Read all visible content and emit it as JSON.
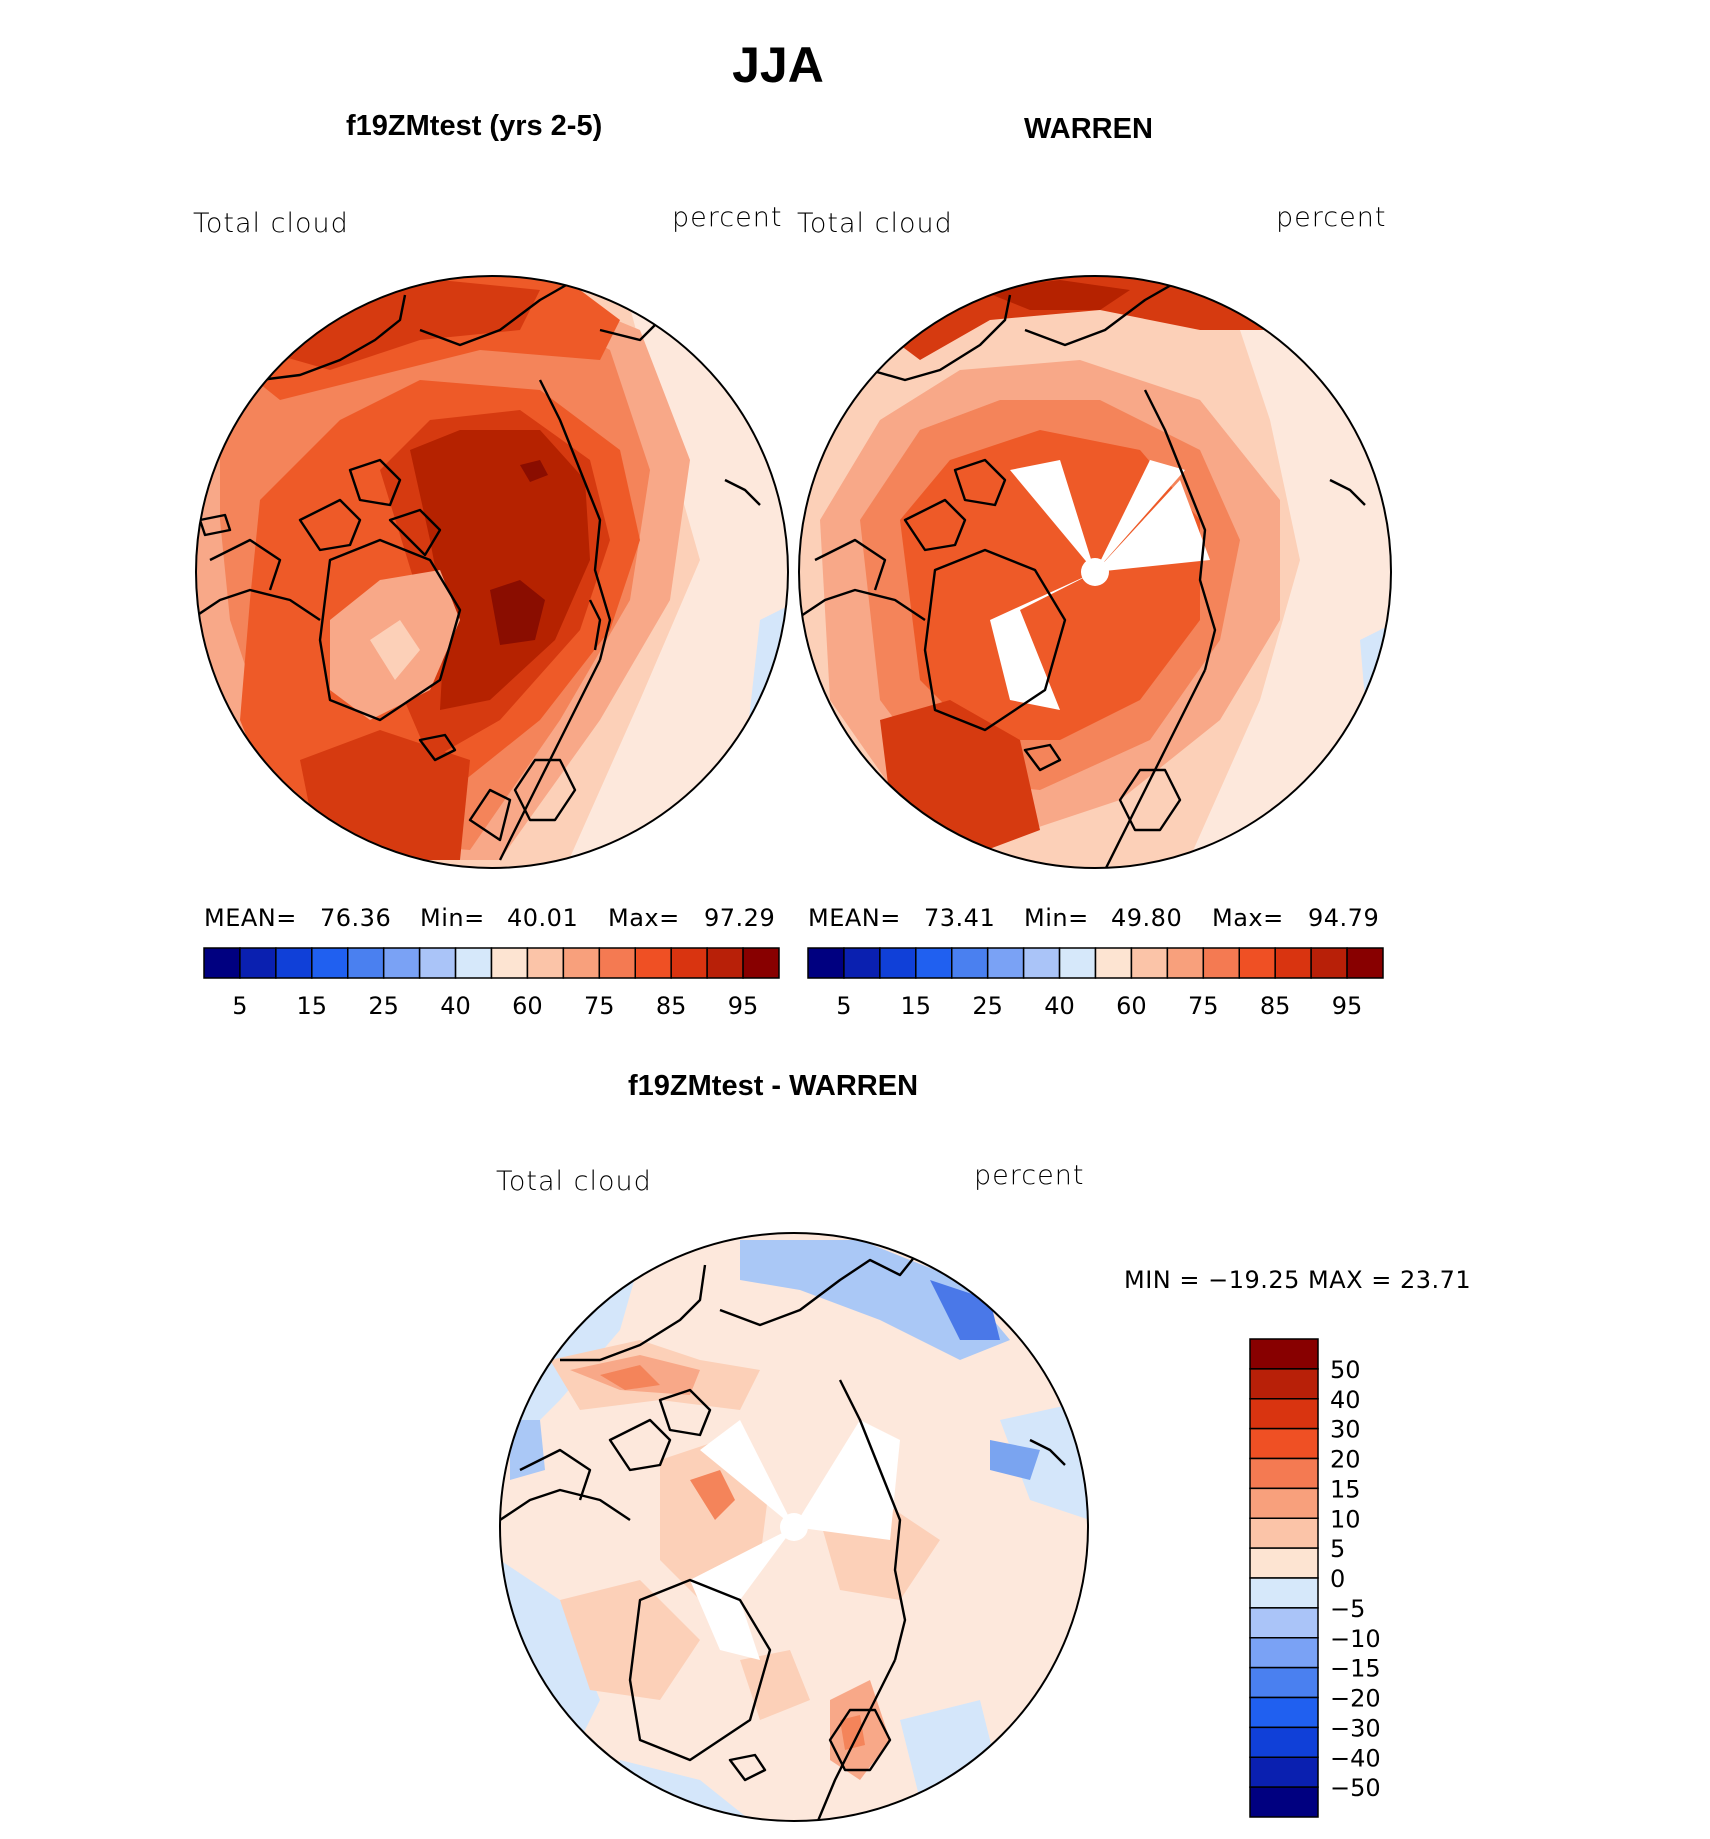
{
  "figure": {
    "title": "JJA"
  },
  "panels": [
    {
      "id": "model",
      "title": "f19ZMtest (yrs 2-5)",
      "variable": "Total cloud",
      "units": "percent",
      "stats": {
        "mean_label": "MEAN=",
        "mean": "76.36",
        "min_label": "Min=",
        "min": "40.01",
        "max_label": "Max=",
        "max": "97.29"
      }
    },
    {
      "id": "obs",
      "title": "WARREN",
      "variable": "Total cloud",
      "units": "percent",
      "stats": {
        "mean_label": "MEAN=",
        "mean": "73.41",
        "min_label": "Min=",
        "min": "49.80",
        "max_label": "Max=",
        "max": "94.79"
      }
    },
    {
      "id": "diff",
      "title": "f19ZMtest - WARREN",
      "variable": "Total cloud",
      "units": "percent",
      "stats_line": "MIN = −19.25 MAX =   23.71"
    }
  ],
  "colorbars": {
    "abs": {
      "colors": [
        "#000080",
        "#0a20b0",
        "#1040d8",
        "#2060f0",
        "#4a80f0",
        "#7aa2f5",
        "#aac4f8",
        "#d6e8fa",
        "#fde4d2",
        "#fbc4a8",
        "#f8a07c",
        "#f47a52",
        "#ef5024",
        "#d93410",
        "#b82008",
        "#880000"
      ],
      "tick_labels": [
        "5",
        "15",
        "25",
        "40",
        "60",
        "75",
        "85",
        "95"
      ]
    },
    "diff": {
      "colors": [
        "#880000",
        "#b82008",
        "#d93410",
        "#ef5024",
        "#f47a52",
        "#f8a07c",
        "#fbc4a8",
        "#fde4d2",
        "#d6e8fa",
        "#aac4f8",
        "#7aa2f5",
        "#4a80f0",
        "#2060f0",
        "#1040d8",
        "#0a20b0",
        "#000080"
      ],
      "tick_labels": [
        "50",
        "40",
        "30",
        "20",
        "15",
        "10",
        "5",
        "0",
        "−5",
        "−10",
        "−15",
        "−20",
        "−30",
        "−40",
        "−50"
      ]
    }
  },
  "map_palette": {
    "darkest_red": "#8a0d00",
    "dark_red": "#b52200",
    "red": "#d63a10",
    "orange_red": "#ee5a28",
    "orange": "#f4845a",
    "salmon": "#f8a888",
    "light_salmon": "#fcd0b8",
    "pale": "#fde8dc",
    "pale_blue": "#d4e6fa",
    "light_blue": "#aac8f6",
    "blue": "#7aa4f0",
    "mid_blue": "#4a78e8",
    "coast": "#000000",
    "missing": "#ffffff"
  }
}
